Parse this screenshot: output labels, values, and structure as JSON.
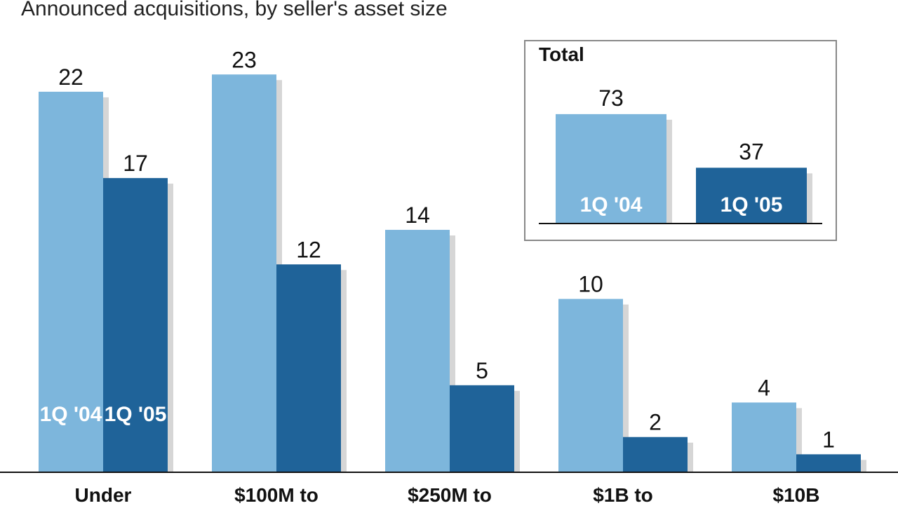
{
  "chart_data": {
    "type": "bar",
    "subtitle": "Announced acquisitions, by seller's asset size",
    "categories": [
      "Under",
      "$100M to",
      "$250M to",
      "$1B to",
      "$10B"
    ],
    "series": [
      {
        "name": "1Q '04",
        "color": "#7db6dc",
        "values": [
          22,
          23,
          14,
          10,
          4
        ]
      },
      {
        "name": "1Q '05",
        "color": "#1f6399",
        "values": [
          17,
          12,
          5,
          2,
          1
        ]
      }
    ],
    "ylim": [
      0,
      25
    ],
    "inset": {
      "title": "Total",
      "values": [
        73,
        37
      ],
      "ylim": [
        0,
        80
      ]
    }
  }
}
